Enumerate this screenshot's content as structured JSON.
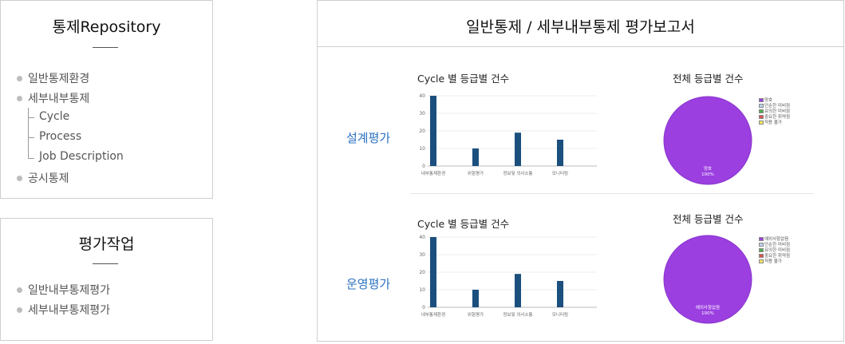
{
  "sidebar_repository": {
    "title": "통제Repository",
    "items": [
      {
        "label": "일반통제환경"
      },
      {
        "label": "세부내부통제"
      }
    ],
    "subitems": [
      {
        "label": "Cycle"
      },
      {
        "label": "Process"
      },
      {
        "label": "Job Description"
      }
    ],
    "last_item": {
      "label": "공시통제"
    }
  },
  "sidebar_work": {
    "title": "평가작업",
    "items": [
      {
        "label": "일반내부통제평가"
      },
      {
        "label": "세부내부통제평가"
      }
    ]
  },
  "report": {
    "title": "일반통제 / 세부내부통제 평가보고서",
    "sections": [
      {
        "label": "설계평가",
        "bar_title": "Cycle 별 등급별 건수",
        "pie_title": "전체 등급별 건수"
      },
      {
        "label": "운영평가",
        "bar_title": "Cycle 별 등급별 건수",
        "pie_title": "전체 등급별 건수"
      }
    ]
  },
  "chart_data": [
    {
      "type": "bar",
      "title": "Cycle 별 등급별 건수",
      "categories": [
        "내부통제환경",
        "위험평가",
        "정보및 의사소통",
        "모니터링"
      ],
      "values": [
        40,
        10,
        19,
        15
      ],
      "ylim": [
        0,
        40
      ],
      "yticks": [
        0,
        10,
        20,
        30,
        40
      ],
      "color": "#1b4f7e",
      "grid": true
    },
    {
      "type": "pie",
      "title": "전체 등급별 건수",
      "slices": [
        {
          "label": "양호",
          "value": 100,
          "display": "100%"
        }
      ],
      "legend": [
        "양호",
        "단순한 미비점",
        "유의한 미비점",
        "중요한 취약점",
        "적용 불가"
      ],
      "legend_colors": [
        "#9b3fe0",
        "#bcd3ec",
        "#4caf50",
        "#d9534f",
        "#f2e85c"
      ],
      "legend_placement": "right",
      "color": "#9b3fe0"
    },
    {
      "type": "bar",
      "title": "Cycle 별 등급별 건수",
      "categories": [
        "내부통제환경",
        "위험평가",
        "정보및 의사소통",
        "모니터링"
      ],
      "values": [
        40,
        10,
        19,
        15
      ],
      "ylim": [
        0,
        40
      ],
      "yticks": [
        0,
        10,
        20,
        30,
        40
      ],
      "color": "#1b4f7e",
      "grid": true
    },
    {
      "type": "pie",
      "title": "전체 등급별 건수",
      "slices": [
        {
          "label": "예외사항없음",
          "value": 100,
          "display": "100%"
        }
      ],
      "legend": [
        "예외사항없음",
        "단순한 미비점",
        "유의한 미비점",
        "중요한 취약점",
        "적용 불가"
      ],
      "legend_colors": [
        "#9b3fe0",
        "#bcd3ec",
        "#4caf50",
        "#d9534f",
        "#f2e85c"
      ],
      "legend_placement": "right",
      "color": "#9b3fe0"
    }
  ]
}
